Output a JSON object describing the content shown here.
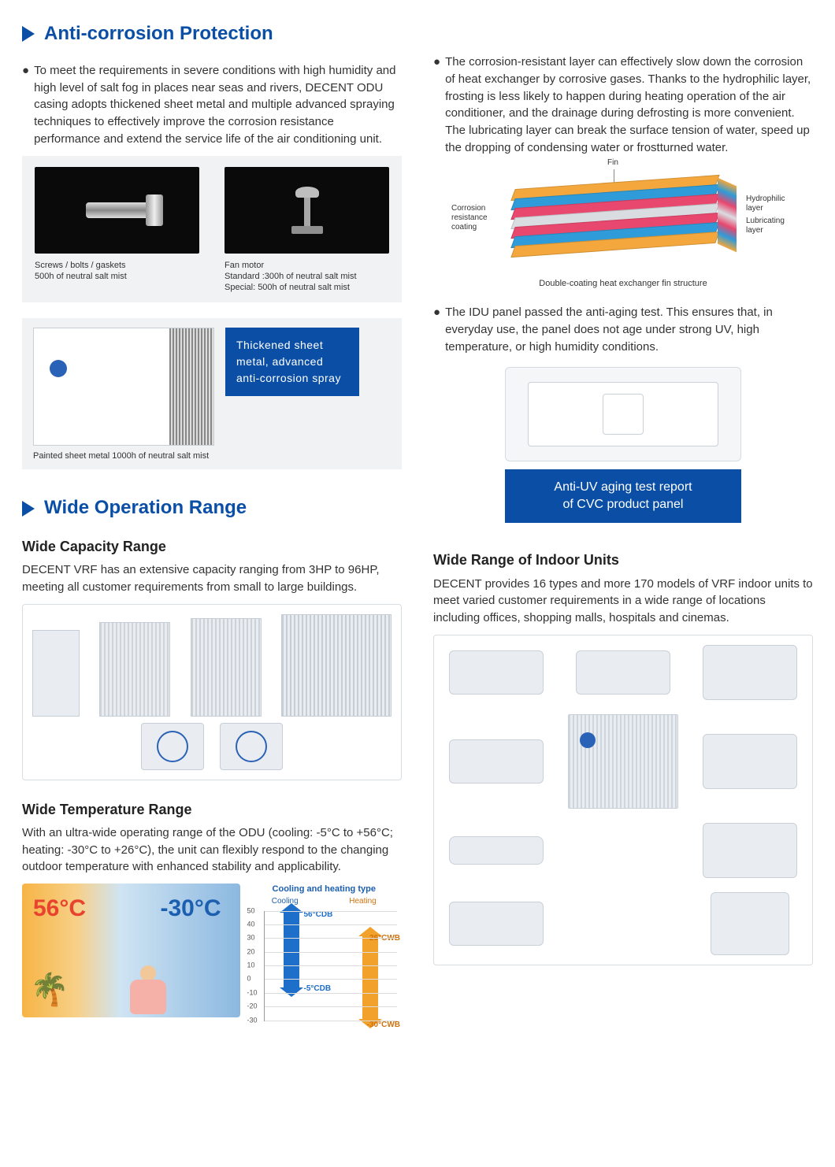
{
  "section1": {
    "title": "Anti-corrosion Protection",
    "left_bullet": "To meet the requirements in severe conditions with high humidity and high level of salt fog in places near seas and rivers, DECENT ODU casing adopts thickened sheet metal and multiple advanced spraying techniques to effectively improve the corrosion resistance performance and extend the service life of the air conditioning unit.",
    "screws": {
      "title": "Screws / bolts / gaskets",
      "sub": "500h of neutral salt mist"
    },
    "fan": {
      "title": "Fan motor",
      "sub1": "Standard :300h of neutral salt mist",
      "sub2": "Special: 500h of neutral salt mist"
    },
    "callout": "Thickened sheet metal, advanced anti-corrosion spray",
    "odu_caption": "Painted sheet metal 1000h of neutral salt mist",
    "right_bullet1": "The corrosion-resistant layer can effectively slow down the corrosion of heat exchanger by corrosive gases. Thanks to the hydrophilic layer, frosting is less likely to happen during heating operation of the air conditioner, and the drainage during defrosting is more convenient. The lubricating layer can break the surface tension of water, speed up the dropping of condensing water or frostturned water.",
    "fin": {
      "fin_label": "Fin",
      "corrosion_label": "Corrosion resistance coating",
      "hydro_label": "Hydrophilic layer",
      "lube_label": "Lubricating layer",
      "caption": "Double-coating heat exchanger fin structure",
      "colors": {
        "outer": "#f3a73c",
        "hydro": "#2f9bd8",
        "fin": "#d9dde1",
        "lube": "#e8476e"
      }
    },
    "right_bullet2": "The IDU panel passed the anti-aging test. This ensures that, in everyday use, the panel does not age under strong UV, high temperature, or high humidity conditions.",
    "cvc_bar_line1": "Anti-UV aging test report",
    "cvc_bar_line2": "of CVC product panel"
  },
  "section2": {
    "title": "Wide Operation Range",
    "cap_head": "Wide Capacity Range",
    "cap_body": "DECENT VRF has an extensive capacity ranging from 3HP to 96HP, meeting all customer requirements from small to large buildings.",
    "temp_head": "Wide Temperature Range",
    "temp_body": "With an ultra-wide operating range of the ODU (cooling: -5°C to +56°C; heating: -30°C to +26°C), the unit can flexibly respond to the changing outdoor temperature with enhanced stability and applicability.",
    "temp_chart": {
      "title": "Cooling and heating type",
      "cooling_label": "Cooling",
      "heating_label": "Heating",
      "ticks": [
        "50",
        "40",
        "30",
        "20",
        "10",
        "0",
        "-10",
        "-20",
        "-30"
      ],
      "top_blue": "56°CDB",
      "bot_blue": "-5°CDB",
      "top_org": "26°CWB",
      "bot_org": "-30°CWB",
      "blue": "#1e6fc9",
      "orange": "#f2a12a"
    },
    "hot_label": "56°C",
    "cold_label": "-30°C",
    "iu_head": "Wide Range of Indoor Units",
    "iu_body": "DECENT provides 16 types and more 170 models of VRF indoor units to meet varied customer requirements in a wide range of locations including offices, shopping malls, hospitals and cinemas."
  }
}
